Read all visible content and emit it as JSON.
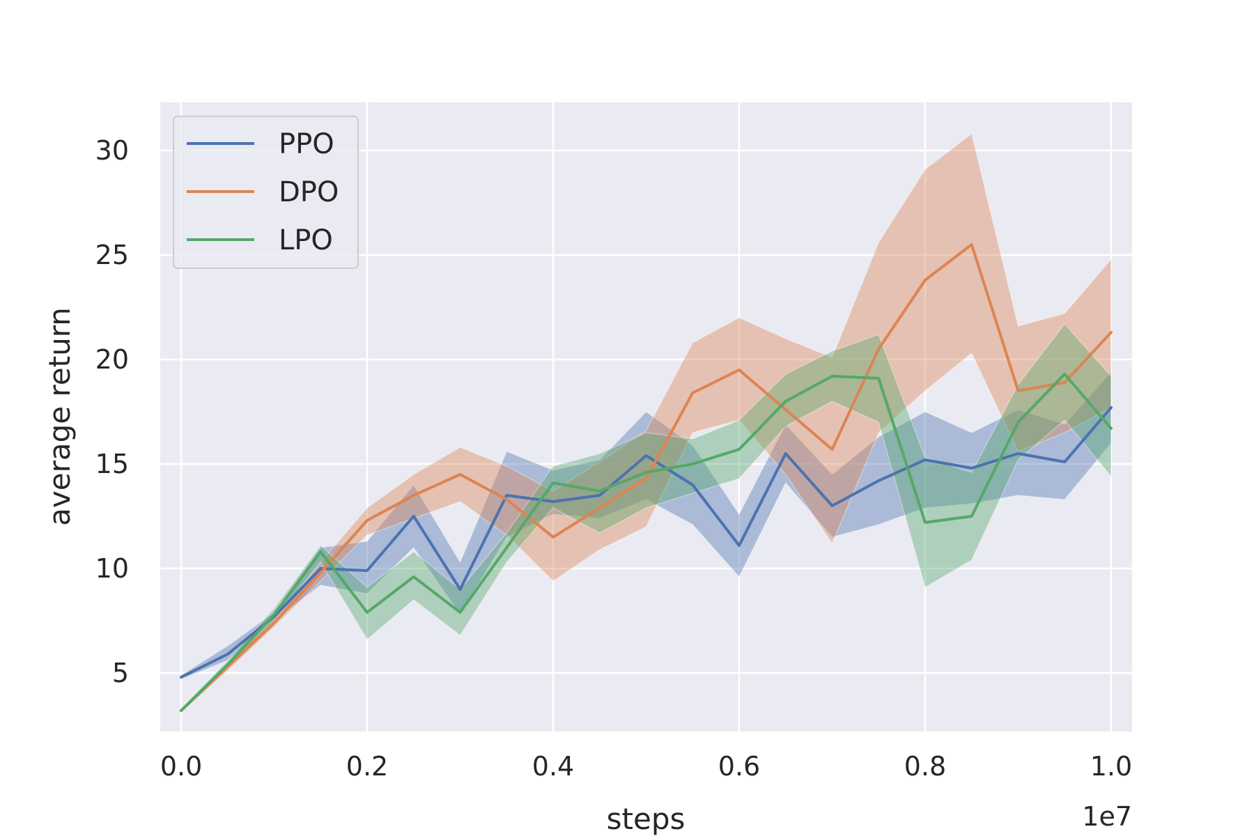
{
  "chart_data": {
    "type": "line",
    "title": "",
    "xlabel": "steps",
    "ylabel": "average return",
    "x_offset_label": "1e7",
    "x_multiplier": 10000000,
    "xlim": [
      -0.0225,
      1.0225
    ],
    "ylim": [
      2.2,
      32.3
    ],
    "xticks": [
      0.0,
      0.2,
      0.4,
      0.6,
      0.8,
      1.0
    ],
    "xtick_labels": [
      "0.0",
      "0.2",
      "0.4",
      "0.6",
      "0.8",
      "1.0"
    ],
    "yticks": [
      5,
      10,
      15,
      20,
      25,
      30
    ],
    "ytick_labels": [
      "5",
      "10",
      "15",
      "20",
      "25",
      "30"
    ],
    "grid": true,
    "legend_position": "top-left",
    "x": [
      0.0,
      0.05,
      0.1,
      0.15,
      0.2,
      0.25,
      0.3,
      0.35,
      0.4,
      0.45,
      0.5,
      0.55,
      0.6,
      0.65,
      0.7,
      0.75,
      0.8,
      0.85,
      0.9,
      0.95,
      1.0
    ],
    "series": [
      {
        "name": "PPO",
        "color": "#4c72b0",
        "values": [
          4.8,
          5.9,
          7.7,
          10.0,
          9.9,
          12.5,
          9.0,
          13.5,
          13.2,
          13.5,
          15.4,
          14.0,
          11.1,
          15.5,
          13.0,
          14.2,
          15.2,
          14.8,
          15.5,
          15.1,
          17.7
        ],
        "lower": [
          4.7,
          5.6,
          7.5,
          9.2,
          8.8,
          11.0,
          7.8,
          11.5,
          12.6,
          12.4,
          13.3,
          12.1,
          9.6,
          14.1,
          11.5,
          12.1,
          12.9,
          13.1,
          13.5,
          13.3,
          16.0
        ],
        "upper": [
          4.9,
          6.3,
          7.9,
          11.0,
          11.3,
          14.0,
          10.3,
          15.6,
          14.7,
          15.2,
          17.5,
          15.9,
          12.6,
          16.9,
          14.5,
          16.3,
          17.5,
          16.5,
          17.6,
          16.9,
          19.4
        ]
      },
      {
        "name": "DPO",
        "color": "#dd8452",
        "values": [
          3.2,
          5.3,
          7.4,
          9.8,
          12.3,
          13.5,
          14.5,
          13.3,
          11.5,
          12.9,
          14.3,
          18.4,
          19.5,
          17.6,
          15.7,
          20.5,
          23.8,
          25.5,
          18.5,
          18.9,
          21.3
        ],
        "lower": [
          3.1,
          5.1,
          7.2,
          9.4,
          11.6,
          12.4,
          13.2,
          11.6,
          9.4,
          10.9,
          12.0,
          16.5,
          17.1,
          14.5,
          11.2,
          16.5,
          18.5,
          20.3,
          15.6,
          16.5,
          17.7
        ],
        "upper": [
          3.3,
          5.5,
          7.6,
          10.3,
          12.9,
          14.5,
          15.8,
          14.9,
          13.7,
          15.1,
          16.6,
          20.8,
          22.0,
          21.0,
          20.1,
          25.6,
          29.1,
          30.8,
          21.6,
          22.2,
          24.8
        ]
      },
      {
        "name": "LPO",
        "color": "#55a868",
        "values": [
          3.2,
          5.4,
          7.8,
          10.8,
          7.9,
          9.6,
          7.9,
          11.0,
          14.1,
          13.7,
          14.6,
          15.0,
          15.7,
          18.0,
          19.2,
          19.1,
          12.2,
          12.5,
          17.0,
          19.3,
          16.7
        ],
        "lower": [
          3.1,
          5.2,
          7.5,
          10.3,
          6.6,
          8.5,
          6.8,
          10.3,
          12.9,
          11.7,
          12.9,
          13.6,
          14.3,
          16.8,
          18.0,
          17.0,
          9.1,
          10.4,
          15.2,
          17.1,
          14.4
        ],
        "upper": [
          3.3,
          5.6,
          8.1,
          11.1,
          9.1,
          10.8,
          9.0,
          11.7,
          14.9,
          15.5,
          16.5,
          16.2,
          17.1,
          19.3,
          20.4,
          21.2,
          15.3,
          14.6,
          18.8,
          21.7,
          19.2
        ]
      }
    ]
  }
}
